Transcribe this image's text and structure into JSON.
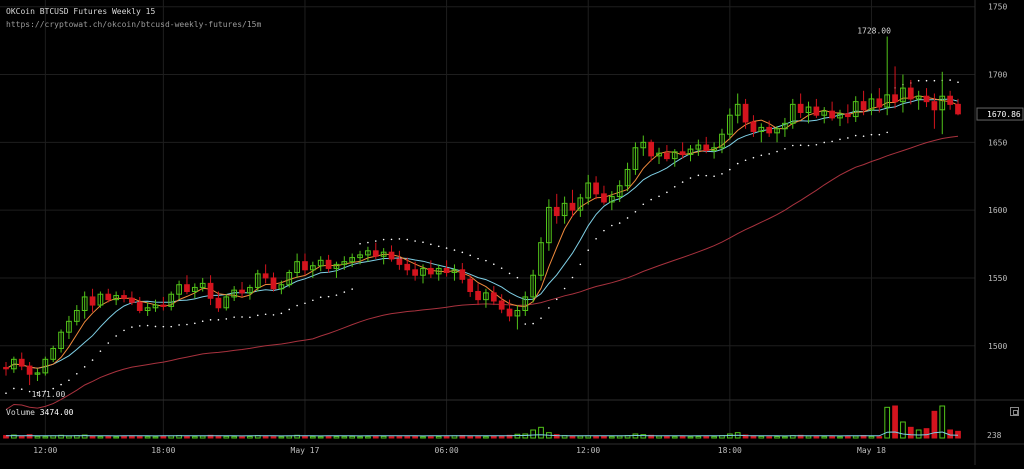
{
  "header": {
    "title": "OKCoin BTCUSD Futures Weekly 15",
    "url": "https://cryptowat.ch/okcoin/btcusd-weekly-futures/15m"
  },
  "volume_panel": {
    "label": "Volume",
    "value": "3474.00",
    "axis_label": "238"
  },
  "colors": {
    "up": "#52c41a",
    "down": "#d4141e",
    "ma_fast": "#f08a3c",
    "ma_slow": "#7fd0e6",
    "ma_long": "#a8323e",
    "sar": "#ffffff",
    "grid": "#1e1e1e"
  },
  "chart_data": {
    "type": "candlestick",
    "price_axis": {
      "ticks": [
        "1750",
        "1700",
        "1650",
        "1600",
        "1550",
        "1500"
      ],
      "range": [
        1460,
        1752
      ]
    },
    "time_axis": {
      "ticks": [
        "12:00",
        "18:00",
        "May 17",
        "06:00",
        "12:00",
        "18:00",
        "May 18"
      ]
    },
    "current_price": "1670.86",
    "annotations": {
      "high": "1728.00",
      "low": "1471.00"
    },
    "candles_ohlc": [
      [
        1484,
        1488,
        1478,
        1483
      ],
      [
        1483,
        1492,
        1480,
        1490
      ],
      [
        1490,
        1495,
        1482,
        1485
      ],
      [
        1485,
        1488,
        1471,
        1479
      ],
      [
        1479,
        1483,
        1474,
        1480
      ],
      [
        1480,
        1492,
        1478,
        1490
      ],
      [
        1490,
        1500,
        1488,
        1498
      ],
      [
        1498,
        1512,
        1495,
        1510
      ],
      [
        1510,
        1522,
        1505,
        1518
      ],
      [
        1518,
        1530,
        1515,
        1526
      ],
      [
        1526,
        1540,
        1520,
        1536
      ],
      [
        1536,
        1542,
        1525,
        1530
      ],
      [
        1530,
        1540,
        1528,
        1538
      ],
      [
        1538,
        1542,
        1532,
        1534
      ],
      [
        1534,
        1540,
        1530,
        1537
      ],
      [
        1537,
        1541,
        1532,
        1535
      ],
      [
        1535,
        1540,
        1530,
        1532
      ],
      [
        1532,
        1536,
        1524,
        1526
      ],
      [
        1526,
        1532,
        1522,
        1528
      ],
      [
        1528,
        1534,
        1525,
        1530
      ],
      [
        1530,
        1536,
        1526,
        1529
      ],
      [
        1529,
        1540,
        1526,
        1538
      ],
      [
        1538,
        1548,
        1534,
        1545
      ],
      [
        1545,
        1552,
        1538,
        1540
      ],
      [
        1540,
        1546,
        1535,
        1543
      ],
      [
        1543,
        1550,
        1540,
        1546
      ],
      [
        1546,
        1552,
        1530,
        1535
      ],
      [
        1535,
        1540,
        1525,
        1528
      ],
      [
        1528,
        1538,
        1526,
        1536
      ],
      [
        1536,
        1544,
        1533,
        1541
      ],
      [
        1541,
        1547,
        1536,
        1539
      ],
      [
        1539,
        1545,
        1534,
        1543
      ],
      [
        1543,
        1556,
        1540,
        1553
      ],
      [
        1553,
        1560,
        1546,
        1550
      ],
      [
        1550,
        1554,
        1540,
        1542
      ],
      [
        1542,
        1548,
        1538,
        1545
      ],
      [
        1545,
        1556,
        1543,
        1554
      ],
      [
        1554,
        1568,
        1550,
        1562
      ],
      [
        1562,
        1568,
        1552,
        1556
      ],
      [
        1556,
        1562,
        1550,
        1559
      ],
      [
        1559,
        1566,
        1555,
        1563
      ],
      [
        1563,
        1567,
        1554,
        1557
      ],
      [
        1557,
        1562,
        1550,
        1560
      ],
      [
        1560,
        1566,
        1556,
        1562
      ],
      [
        1562,
        1568,
        1558,
        1565
      ],
      [
        1565,
        1570,
        1560,
        1567
      ],
      [
        1567,
        1573,
        1562,
        1570
      ],
      [
        1570,
        1576,
        1564,
        1566
      ],
      [
        1566,
        1572,
        1560,
        1569
      ],
      [
        1569,
        1574,
        1562,
        1564
      ],
      [
        1564,
        1570,
        1556,
        1560
      ],
      [
        1560,
        1565,
        1552,
        1556
      ],
      [
        1556,
        1562,
        1548,
        1552
      ],
      [
        1552,
        1560,
        1546,
        1557
      ],
      [
        1557,
        1563,
        1550,
        1553
      ],
      [
        1553,
        1560,
        1548,
        1557
      ],
      [
        1557,
        1563,
        1551,
        1554
      ],
      [
        1554,
        1560,
        1548,
        1556
      ],
      [
        1556,
        1561,
        1546,
        1549
      ],
      [
        1549,
        1552,
        1536,
        1540
      ],
      [
        1540,
        1546,
        1530,
        1534
      ],
      [
        1534,
        1542,
        1528,
        1539
      ],
      [
        1539,
        1544,
        1530,
        1533
      ],
      [
        1533,
        1538,
        1524,
        1527
      ],
      [
        1527,
        1534,
        1518,
        1522
      ],
      [
        1522,
        1530,
        1512,
        1526
      ],
      [
        1526,
        1540,
        1522,
        1536
      ],
      [
        1536,
        1556,
        1532,
        1552
      ],
      [
        1552,
        1580,
        1548,
        1576
      ],
      [
        1576,
        1608,
        1570,
        1602
      ],
      [
        1602,
        1612,
        1590,
        1596
      ],
      [
        1596,
        1610,
        1590,
        1605
      ],
      [
        1605,
        1615,
        1595,
        1600
      ],
      [
        1600,
        1612,
        1595,
        1609
      ],
      [
        1609,
        1626,
        1604,
        1620
      ],
      [
        1620,
        1625,
        1608,
        1612
      ],
      [
        1612,
        1618,
        1604,
        1606
      ],
      [
        1606,
        1614,
        1600,
        1610
      ],
      [
        1610,
        1622,
        1606,
        1618
      ],
      [
        1618,
        1635,
        1614,
        1630
      ],
      [
        1630,
        1650,
        1626,
        1646
      ],
      [
        1646,
        1655,
        1640,
        1650
      ],
      [
        1650,
        1652,
        1636,
        1640
      ],
      [
        1640,
        1646,
        1634,
        1642
      ],
      [
        1642,
        1648,
        1636,
        1638
      ],
      [
        1638,
        1645,
        1632,
        1643
      ],
      [
        1643,
        1650,
        1638,
        1641
      ],
      [
        1641,
        1648,
        1636,
        1645
      ],
      [
        1645,
        1652,
        1640,
        1648
      ],
      [
        1648,
        1654,
        1642,
        1644
      ],
      [
        1644,
        1650,
        1638,
        1646
      ],
      [
        1646,
        1660,
        1642,
        1656
      ],
      [
        1656,
        1675,
        1652,
        1670
      ],
      [
        1670,
        1686,
        1664,
        1678
      ],
      [
        1678,
        1682,
        1660,
        1665
      ],
      [
        1665,
        1670,
        1654,
        1658
      ],
      [
        1658,
        1664,
        1650,
        1661
      ],
      [
        1661,
        1666,
        1654,
        1657
      ],
      [
        1657,
        1662,
        1650,
        1660
      ],
      [
        1660,
        1668,
        1654,
        1664
      ],
      [
        1664,
        1682,
        1660,
        1678
      ],
      [
        1678,
        1686,
        1668,
        1672
      ],
      [
        1672,
        1680,
        1664,
        1676
      ],
      [
        1676,
        1682,
        1668,
        1670
      ],
      [
        1670,
        1676,
        1664,
        1673
      ],
      [
        1673,
        1680,
        1666,
        1668
      ],
      [
        1668,
        1674,
        1662,
        1671
      ],
      [
        1671,
        1678,
        1664,
        1669
      ],
      [
        1669,
        1684,
        1665,
        1680
      ],
      [
        1680,
        1688,
        1670,
        1674
      ],
      [
        1674,
        1686,
        1670,
        1682
      ],
      [
        1682,
        1690,
        1672,
        1676
      ],
      [
        1676,
        1728,
        1670,
        1685
      ],
      [
        1685,
        1706,
        1675,
        1680
      ],
      [
        1680,
        1700,
        1672,
        1690
      ],
      [
        1690,
        1696,
        1678,
        1682
      ],
      [
        1682,
        1688,
        1674,
        1684
      ],
      [
        1684,
        1690,
        1676,
        1680
      ],
      [
        1680,
        1686,
        1660,
        1674
      ],
      [
        1674,
        1702,
        1656,
        1684
      ],
      [
        1684,
        1688,
        1674,
        1678
      ],
      [
        1678,
        1682,
        1670,
        1671
      ]
    ],
    "volumes": [
      18,
      22,
      15,
      25,
      12,
      10,
      16,
      20,
      14,
      18,
      22,
      12,
      10,
      14,
      9,
      11,
      16,
      12,
      10,
      9,
      13,
      15,
      18,
      12,
      10,
      14,
      20,
      16,
      12,
      10,
      9,
      11,
      18,
      12,
      10,
      9,
      14,
      20,
      12,
      10,
      9,
      13,
      11,
      10,
      12,
      9,
      10,
      14,
      12,
      10,
      13,
      15,
      12,
      9,
      10,
      11,
      14,
      16,
      18,
      12,
      13,
      10,
      12,
      14,
      20,
      28,
      30,
      60,
      80,
      40,
      25,
      18,
      15,
      14,
      16,
      12,
      12,
      10,
      14,
      18,
      30,
      25,
      20,
      14,
      12,
      10,
      12,
      9,
      11,
      13,
      10,
      18,
      30,
      40,
      22,
      16,
      12,
      10,
      11,
      9,
      18,
      20,
      14,
      12,
      10,
      11,
      9,
      13,
      14,
      18,
      12,
      10,
      230,
      240,
      120,
      80,
      60,
      70,
      200,
      240,
      60,
      50
    ]
  }
}
